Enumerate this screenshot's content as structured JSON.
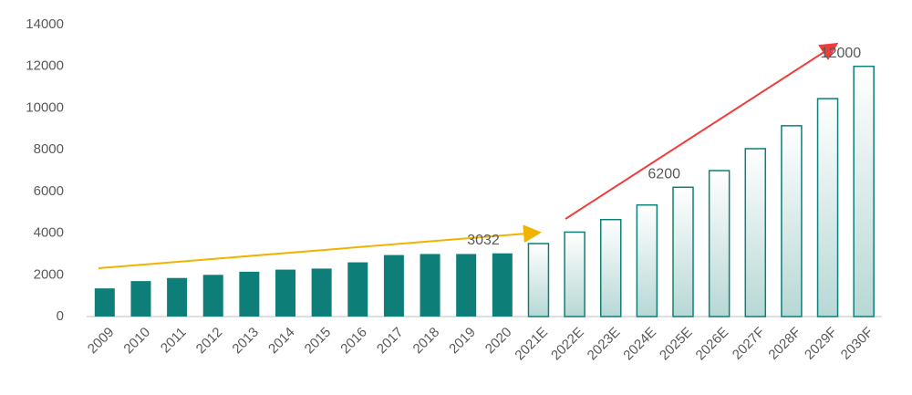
{
  "chart_data": {
    "type": "bar",
    "categories": [
      "2009",
      "2010",
      "2011",
      "2012",
      "2013",
      "2014",
      "2015",
      "2016",
      "2017",
      "2018",
      "2019",
      "2020",
      "2021E",
      "2022E",
      "2023E",
      "2024E",
      "2025E",
      "2026E",
      "2027F",
      "2028F",
      "2029F",
      "2030F"
    ],
    "values": [
      1350,
      1700,
      1850,
      2000,
      2150,
      2250,
      2300,
      2600,
      2950,
      3000,
      3000,
      3032,
      3500,
      4050,
      4650,
      5350,
      6200,
      7000,
      8050,
      9150,
      10450,
      12000
    ],
    "value_labels": [
      null,
      null,
      null,
      null,
      null,
      null,
      null,
      null,
      null,
      null,
      null,
      "3032",
      null,
      null,
      null,
      null,
      "6200",
      null,
      null,
      null,
      null,
      "12000"
    ],
    "bar_styles": [
      "solid",
      "solid",
      "solid",
      "solid",
      "solid",
      "solid",
      "solid",
      "solid",
      "solid",
      "solid",
      "solid",
      "solid",
      "gradient",
      "gradient",
      "gradient",
      "gradient",
      "gradient",
      "gradient",
      "gradient",
      "gradient",
      "gradient",
      "gradient"
    ],
    "color": "#0e7f78",
    "ylim": [
      0,
      14000
    ],
    "yticks": [
      0,
      2000,
      4000,
      6000,
      8000,
      10000,
      12000,
      14000
    ],
    "grid": false
  }
}
